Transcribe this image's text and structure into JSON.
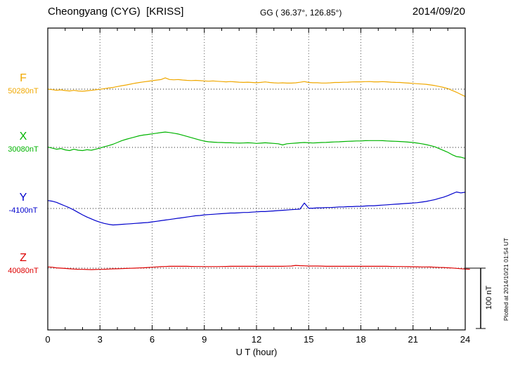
{
  "header": {
    "station": "Cheongyang (CYG)  [KRISS]",
    "coords": "GG ( 36.37°, 126.85°)",
    "date": "2014/09/20"
  },
  "xaxis": {
    "label": "U T (hour)",
    "ticks": [
      "0",
      "3",
      "6",
      "9",
      "12",
      "15",
      "18",
      "21",
      "24"
    ]
  },
  "scalebar": {
    "label": "100 nT",
    "span_nT": 100
  },
  "footer_note": "Plotted at 2014/10/21 01:54 UT",
  "chart_data": {
    "type": "line",
    "title": "Cheongyang (CYG) [KRISS] magnetogram 2014/09/20",
    "xlabel": "U T (hour)",
    "x_range": [
      0,
      24
    ],
    "x_step": 0.25,
    "x_ticks": [
      0,
      3,
      6,
      9,
      12,
      15,
      18,
      21,
      24
    ],
    "grid": "dotted vertical lines every 3 h; dotted horizontal baseline per component",
    "scale_bar_nT": 100,
    "value_unit": "nT offset from component baseline",
    "series": [
      {
        "name": "F",
        "baseline_label": "50280nT",
        "baseline_nT": 50280,
        "color": "#f0a800",
        "values": [
          0,
          -0.8,
          -1.8,
          -1.2,
          -2.3,
          -3,
          -2,
          -3,
          -3.5,
          -2.8,
          -2,
          -1,
          -0.2,
          0.8,
          1.8,
          2.8,
          4.2,
          5.6,
          6.8,
          8.2,
          9.6,
          10.8,
          11.8,
          12.8,
          13.8,
          14.8,
          15.6,
          18.5,
          15.8,
          15.3,
          15.8,
          15,
          14.4,
          14,
          14.4,
          13.9,
          13.4,
          13,
          13.4,
          12.9,
          12.4,
          12,
          12.4,
          11.9,
          11.4,
          11,
          11.4,
          10.9,
          10.5,
          11,
          11.8,
          10.9,
          10.4,
          10,
          10.3,
          9.9,
          9.9,
          10.4,
          11.3,
          12.4,
          10.9,
          10.5,
          10.5,
          10,
          10,
          10.4,
          10.9,
          10.9,
          11.3,
          11.4,
          11.8,
          11.9,
          11.9,
          12.3,
          12.4,
          11.9,
          11.9,
          12.3,
          11.9,
          11.4,
          11,
          10.9,
          10.4,
          9.9,
          9.4,
          8.9,
          8.4,
          7.9,
          6.9,
          5.9,
          4.4,
          2.9,
          0.9,
          -2.1,
          -5.1,
          -8.6,
          -12
        ]
      },
      {
        "name": "X",
        "baseline_label": "30080nT",
        "baseline_nT": 30080,
        "color": "#00b400",
        "values": [
          0.5,
          -1,
          -3,
          -1.8,
          -4,
          -5.2,
          -3,
          -4.6,
          -5.2,
          -3.8,
          -4.6,
          -3,
          -1,
          1,
          3,
          5.2,
          8,
          11,
          13.2,
          15.2,
          17,
          19,
          20.2,
          21.2,
          22.2,
          23.2,
          24.2,
          25.2,
          24.4,
          23.2,
          22,
          20,
          18,
          16,
          14,
          12,
          10.2,
          9.2,
          8.6,
          8.2,
          8,
          7.6,
          7.6,
          7.2,
          7,
          7.2,
          7.6,
          7.2,
          6.6,
          7,
          7.6,
          7,
          6.6,
          6,
          4,
          6,
          6.6,
          7,
          7.6,
          8,
          7.6,
          7.2,
          7.6,
          8,
          8.2,
          8.6,
          9,
          9.2,
          9.6,
          10,
          10.2,
          10.6,
          10.6,
          11,
          11.2,
          11.2,
          11.2,
          11,
          10.6,
          10.2,
          10,
          9.6,
          9.2,
          8.6,
          8,
          7,
          6,
          4.6,
          3,
          1,
          -2,
          -5,
          -8,
          -12,
          -15,
          -16,
          -18
        ]
      },
      {
        "name": "Y",
        "baseline_label": "-4100nT",
        "baseline_nT": -4100,
        "color": "#0000cc",
        "values": [
          13,
          12,
          10,
          7,
          4,
          1,
          -2.5,
          -6.5,
          -10.5,
          -14,
          -17,
          -20,
          -22.5,
          -24.5,
          -26,
          -27,
          -26.5,
          -26,
          -25.5,
          -25,
          -24.5,
          -24,
          -23.5,
          -23,
          -22,
          -21,
          -20,
          -19,
          -18,
          -17,
          -16,
          -15,
          -14,
          -13,
          -12,
          -11.5,
          -10.5,
          -10,
          -9.5,
          -9,
          -8.5,
          -8,
          -7.5,
          -7.5,
          -7,
          -6.5,
          -6.5,
          -6,
          -5.5,
          -5,
          -5,
          -4.5,
          -4,
          -3.5,
          -3,
          -2.5,
          -2,
          -1.5,
          -1,
          9,
          0.5,
          0.5,
          1,
          1,
          1.5,
          1.5,
          2,
          2.5,
          2.5,
          3,
          3,
          3.5,
          3.5,
          4,
          4.5,
          4.5,
          5,
          5.5,
          6,
          6.5,
          7,
          7.5,
          8,
          8.5,
          9,
          9.5,
          10.5,
          11.5,
          13,
          14.5,
          16.5,
          18.5,
          21,
          24,
          27,
          25.5,
          26.5
        ]
      },
      {
        "name": "Z",
        "baseline_label": "40080nT",
        "baseline_nT": 40080,
        "color": "#dd0000",
        "values": [
          2,
          1.5,
          0.5,
          0,
          -0.5,
          -1,
          -1.5,
          -1.8,
          -2,
          -2.2,
          -2.4,
          -2.2,
          -2,
          -1.8,
          -1.5,
          -1.2,
          -1,
          -0.8,
          -0.5,
          -0.2,
          0,
          0.3,
          0.6,
          1,
          1.5,
          2,
          2.4,
          2.7,
          3,
          3,
          3,
          3,
          3,
          2.8,
          2.6,
          2.6,
          2.5,
          2.5,
          2.5,
          2.5,
          2.6,
          2.8,
          3,
          3,
          3,
          3,
          3,
          3,
          3,
          3,
          3,
          3,
          3,
          3,
          3,
          3.2,
          3.5,
          4.5,
          4,
          3.8,
          3.5,
          3.5,
          3.5,
          3.3,
          3,
          3,
          3,
          3,
          3,
          3,
          3,
          3,
          3,
          3,
          3,
          3,
          3,
          3,
          3,
          2.8,
          2.6,
          2.6,
          2.5,
          2.4,
          2.2,
          2.2,
          2,
          2,
          1.8,
          1.5,
          1.2,
          1,
          0.6,
          0.2,
          -0.3,
          -0.9,
          -1.5,
          -1.8
        ]
      }
    ]
  }
}
